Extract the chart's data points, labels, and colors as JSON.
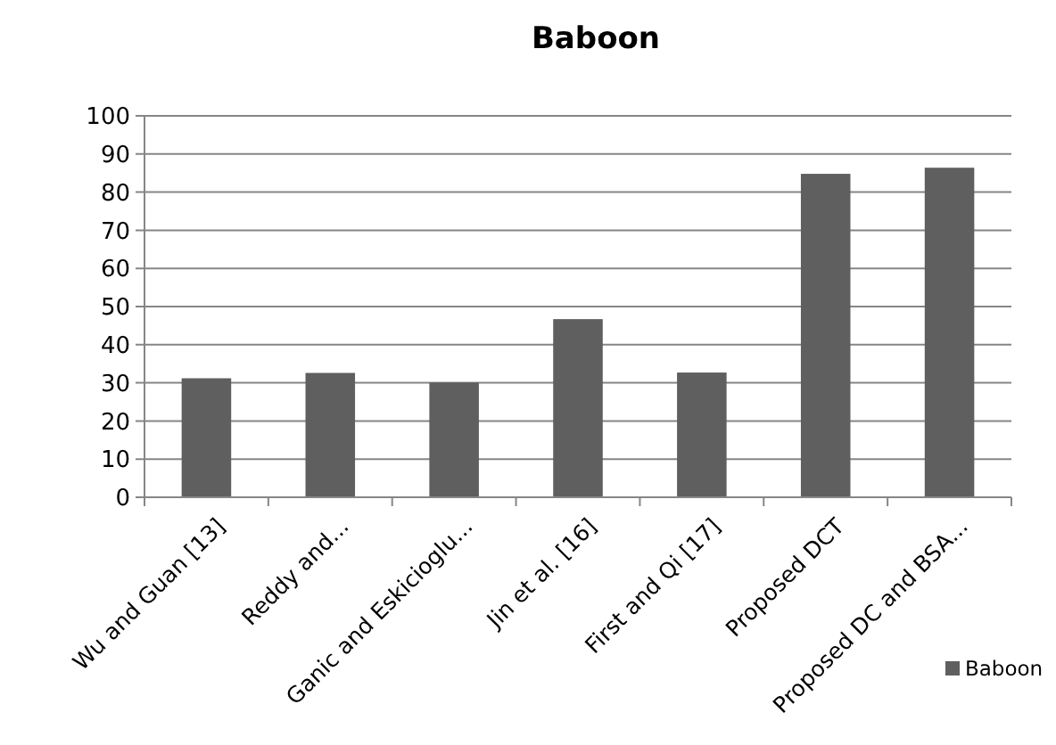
{
  "chart_data": {
    "type": "bar",
    "title": "Baboon",
    "categories": [
      "Wu and Guan [13]",
      "Reddy and...",
      "Ganic and Eskicioglu...",
      "Jin et al. [16]",
      "First and Qi [17]",
      "Proposed DCT",
      "Proposed DC and BSA..."
    ],
    "series": [
      {
        "name": "Baboon",
        "color": "#5f5f5f",
        "values": [
          31.2,
          32.6,
          30.1,
          46.7,
          32.7,
          84.8,
          86.4
        ]
      }
    ],
    "ylim": [
      0,
      100
    ],
    "yticks": [
      0,
      10,
      20,
      30,
      40,
      50,
      60,
      70,
      80,
      90,
      100
    ],
    "grid": "y",
    "legend": "bottom right"
  }
}
